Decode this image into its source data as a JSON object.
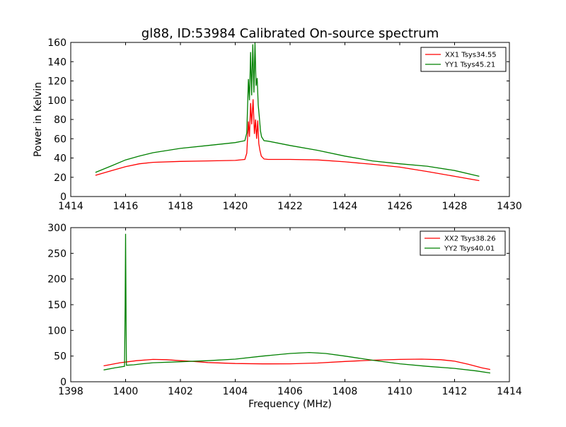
{
  "figure": {
    "title": "gl88, ID:53984 Calibrated On-source spectrum",
    "colors": {
      "xx": "#ff0000",
      "yy": "#008000",
      "axis": "#000000",
      "background": "#ffffff"
    }
  },
  "chart_data": [
    {
      "type": "line",
      "title": "gl88, ID:53984 Calibrated On-source spectrum",
      "xlabel": "",
      "ylabel": "Power in Kelvin",
      "xlim": [
        1414,
        1430
      ],
      "ylim": [
        0,
        160
      ],
      "xticks": [
        1414,
        1416,
        1418,
        1420,
        1422,
        1424,
        1426,
        1428,
        1430
      ],
      "yticks": [
        0,
        20,
        40,
        60,
        80,
        100,
        120,
        140,
        160
      ],
      "grid": false,
      "legend": {
        "position": "top-right",
        "entries": [
          "XX1 Tsys34.55",
          "YY1 Tsys45.21"
        ]
      },
      "series": [
        {
          "name": "XX1 Tsys34.55",
          "color": "#ff0000",
          "x": [
            1414.9,
            1415.5,
            1416.0,
            1416.5,
            1417.0,
            1418.0,
            1419.0,
            1420.0,
            1420.35,
            1420.42,
            1420.48,
            1420.52,
            1420.56,
            1420.6,
            1420.65,
            1420.7,
            1420.74,
            1420.78,
            1420.82,
            1420.86,
            1420.9,
            1420.95,
            1421.05,
            1421.2,
            1422.0,
            1423.0,
            1424.0,
            1425.0,
            1426.0,
            1427.0,
            1428.0,
            1428.9
          ],
          "y": [
            22,
            27,
            31,
            34,
            35.5,
            36.5,
            37,
            37.5,
            38.5,
            45,
            78,
            62,
            97,
            75,
            101,
            65,
            80,
            60,
            79,
            55,
            48,
            42,
            39,
            38.5,
            38.5,
            38,
            36,
            33.5,
            30.5,
            26,
            21,
            16.5
          ]
        },
        {
          "name": "YY1 Tsys45.21",
          "color": "#008000",
          "x": [
            1414.9,
            1415.5,
            1416.0,
            1416.5,
            1417.0,
            1418.0,
            1419.0,
            1420.0,
            1420.35,
            1420.42,
            1420.48,
            1420.52,
            1420.56,
            1420.6,
            1420.64,
            1420.68,
            1420.72,
            1420.76,
            1420.8,
            1420.84,
            1420.88,
            1420.92,
            1420.96,
            1421.05,
            1421.2,
            1422.0,
            1423.0,
            1424.0,
            1425.0,
            1426.0,
            1427.0,
            1428.0,
            1428.9
          ],
          "y": [
            25,
            32,
            38,
            42,
            45.5,
            50,
            53,
            56,
            58,
            66,
            122,
            100,
            150,
            105,
            158,
            108,
            160,
            115,
            123,
            95,
            82,
            68,
            62,
            58,
            57.5,
            53,
            48,
            42,
            37,
            34,
            31.5,
            27,
            21
          ]
        }
      ]
    },
    {
      "type": "line",
      "title": "",
      "xlabel": "Frequency (MHz)",
      "ylabel": "",
      "xlim": [
        1398,
        1414
      ],
      "ylim": [
        0,
        300
      ],
      "xticks": [
        1398,
        1400,
        1402,
        1404,
        1406,
        1408,
        1410,
        1412,
        1414
      ],
      "yticks": [
        0,
        50,
        100,
        150,
        200,
        250,
        300
      ],
      "grid": false,
      "legend": {
        "position": "top-right",
        "entries": [
          "XX2 Tsys38.26",
          "YY2 Tsys40.01"
        ]
      },
      "series": [
        {
          "name": "XX2 Tsys38.26",
          "color": "#ff0000",
          "x": [
            1399.2,
            1399.8,
            1400.4,
            1401.0,
            1401.5,
            1402.0,
            1402.5,
            1403.0,
            1404.0,
            1405.0,
            1406.0,
            1407.0,
            1408.0,
            1409.0,
            1410.0,
            1410.8,
            1411.5,
            1412.0,
            1412.5,
            1413.0,
            1413.3
          ],
          "y": [
            31,
            37,
            41,
            43.5,
            43,
            41,
            39.5,
            37.5,
            35.5,
            34.8,
            35,
            36.5,
            39.5,
            42,
            43.5,
            44,
            43,
            40,
            34,
            27,
            24
          ]
        },
        {
          "name": "YY2 Tsys40.01",
          "color": "#008000",
          "x": [
            1399.2,
            1399.6,
            1399.96,
            1399.985,
            1400.0,
            1400.02,
            1400.03,
            1400.3,
            1400.6,
            1401.0,
            1402.0,
            1403.0,
            1404.0,
            1405.0,
            1406.0,
            1406.7,
            1407.3,
            1408.0,
            1409.0,
            1410.0,
            1411.0,
            1412.0,
            1412.8,
            1413.3
          ],
          "y": [
            23,
            27,
            30,
            150,
            288,
            100,
            32,
            33,
            35,
            37,
            39,
            41,
            44,
            50,
            55,
            57,
            55,
            50,
            42,
            35,
            30,
            26,
            21,
            17
          ]
        }
      ]
    }
  ]
}
